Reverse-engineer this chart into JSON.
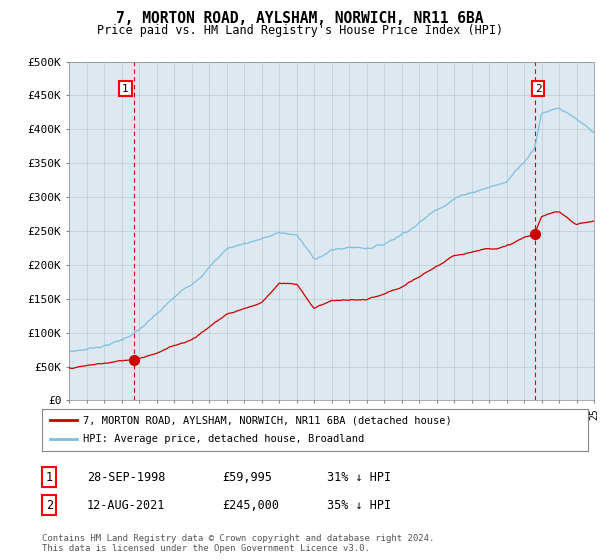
{
  "title": "7, MORTON ROAD, AYLSHAM, NORWICH, NR11 6BA",
  "subtitle": "Price paid vs. HM Land Registry's House Price Index (HPI)",
  "ylim": [
    0,
    500000
  ],
  "yticks": [
    0,
    50000,
    100000,
    150000,
    200000,
    250000,
    300000,
    350000,
    400000,
    450000,
    500000
  ],
  "ytick_labels": [
    "£0",
    "£50K",
    "£100K",
    "£150K",
    "£200K",
    "£250K",
    "£300K",
    "£350K",
    "£400K",
    "£450K",
    "£500K"
  ],
  "xlim": [
    1995,
    2025
  ],
  "hpi_color": "#7fbfdf",
  "price_color": "#cc0000",
  "chart_bg": "#dde8f0",
  "marker1_year": 1998.73,
  "marker1_price": 59995,
  "marker2_year": 2021.6,
  "marker2_price": 245000,
  "legend_line1": "7, MORTON ROAD, AYLSHAM, NORWICH, NR11 6BA (detached house)",
  "legend_line2": "HPI: Average price, detached house, Broadland",
  "table_row1": [
    "1",
    "28-SEP-1998",
    "£59,995",
    "31% ↓ HPI"
  ],
  "table_row2": [
    "2",
    "12-AUG-2021",
    "£245,000",
    "35% ↓ HPI"
  ],
  "footnote": "Contains HM Land Registry data © Crown copyright and database right 2024.\nThis data is licensed under the Open Government Licence v3.0.",
  "hpi_knots": [
    1995,
    1996,
    1997,
    1998,
    1999,
    2000,
    2001,
    2002,
    2003,
    2004,
    2005,
    2006,
    2007,
    2008,
    2009,
    2010,
    2011,
    2012,
    2013,
    2014,
    2015,
    2016,
    2017,
    2018,
    2019,
    2020,
    2021,
    2021.6,
    2022,
    2023,
    2024,
    2025
  ],
  "hpi_vals": [
    72000,
    76000,
    82000,
    90000,
    105000,
    125000,
    148000,
    168000,
    195000,
    222000,
    230000,
    238000,
    245000,
    242000,
    205000,
    218000,
    222000,
    222000,
    228000,
    244000,
    262000,
    282000,
    300000,
    310000,
    318000,
    325000,
    358000,
    377000,
    430000,
    440000,
    420000,
    395000
  ],
  "price_knots": [
    1995,
    1998.73,
    2000,
    2002,
    2004,
    2006,
    2007,
    2008,
    2009,
    2010,
    2011,
    2012,
    2013,
    2014,
    2015,
    2016,
    2017,
    2018,
    2019,
    2020,
    2021,
    2021.6,
    2022,
    2023,
    2024,
    2025
  ],
  "price_vals": [
    48000,
    59995,
    72000,
    92000,
    130000,
    148000,
    178000,
    175000,
    140000,
    152000,
    152000,
    152000,
    158000,
    167000,
    180000,
    196000,
    210000,
    218000,
    224000,
    228000,
    240000,
    245000,
    270000,
    278000,
    260000,
    265000
  ]
}
